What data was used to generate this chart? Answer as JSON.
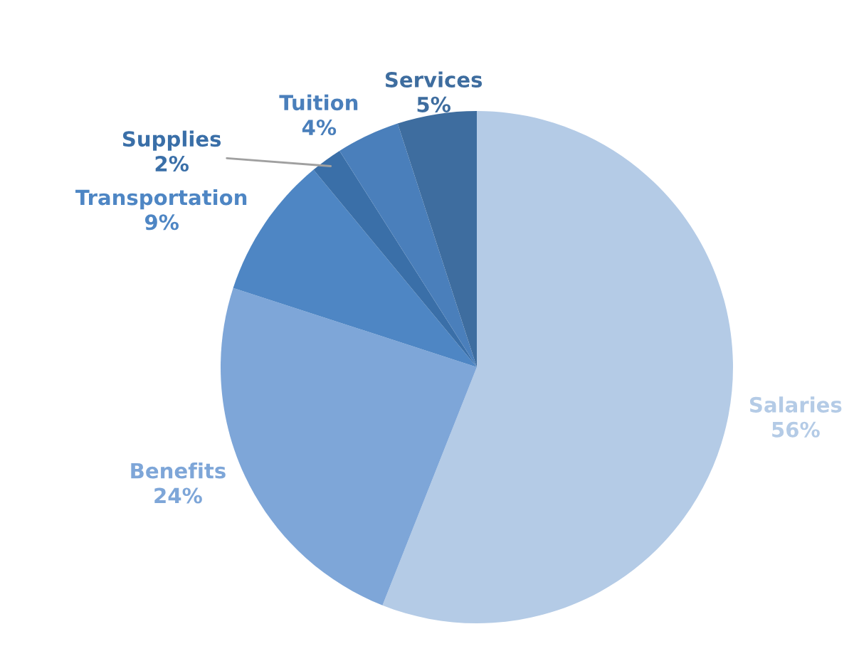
{
  "chart_data": {
    "type": "pie",
    "categories": [
      "Salaries",
      "Benefits",
      "Transportation",
      "Supplies",
      "Tuition",
      "Services"
    ],
    "values": [
      56,
      24,
      9,
      2,
      4,
      5
    ],
    "value_labels": [
      "56%",
      "24%",
      "9%",
      "2%",
      "4%",
      "5%"
    ],
    "colors": [
      "#b4cbe6",
      "#7ea6d8",
      "#4e86c4",
      "#3a6fa8",
      "#4a7fbb",
      "#3e6d9f"
    ]
  }
}
